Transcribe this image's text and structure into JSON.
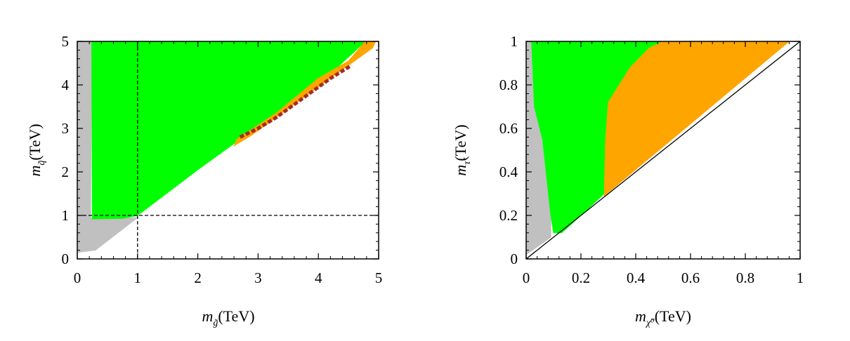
{
  "chart_data": [
    {
      "type": "scatter",
      "title": "",
      "xlabel": {
        "symbol": "m",
        "subscript": "g̃",
        "unit": "(TeV)"
      },
      "ylabel": {
        "symbol": "m",
        "subscript": "q̃",
        "unit": "(TeV)"
      },
      "xlim": [
        0,
        5
      ],
      "ylim": [
        0,
        5
      ],
      "xticks": [
        0,
        1,
        2,
        3,
        4,
        5
      ],
      "yticks": [
        0,
        1,
        2,
        3,
        4,
        5
      ],
      "tick_labels_x": [
        "0",
        "1",
        "2",
        "3",
        "4",
        "5"
      ],
      "tick_labels_y": [
        "0",
        "1",
        "2",
        "3",
        "4",
        "5"
      ],
      "grid": false,
      "legend": "none",
      "regions": [
        {
          "name": "",
          "color": "#c0c0c0",
          "polygon": [
            [
              0.0,
              0.15
            ],
            [
              0.0,
              5.0
            ],
            [
              0.24,
              5.0
            ],
            [
              0.22,
              0.95
            ],
            [
              1.0,
              0.95
            ],
            [
              0.3,
              0.2
            ]
          ]
        },
        {
          "name": "",
          "color": "#00ff00",
          "polygon": [
            [
              0.24,
              5.0
            ],
            [
              4.78,
              5.0
            ],
            [
              4.35,
              4.45
            ],
            [
              3.2,
              3.25
            ],
            [
              2.0,
              2.05
            ],
            [
              1.0,
              1.0
            ],
            [
              0.75,
              0.93
            ],
            [
              0.25,
              0.92
            ]
          ]
        },
        {
          "name": "",
          "color": "#ffa500",
          "polygon": [
            [
              4.78,
              5.0
            ],
            [
              4.95,
              5.0
            ],
            [
              4.9,
              4.85
            ],
            [
              4.4,
              4.35
            ],
            [
              3.6,
              3.55
            ],
            [
              2.9,
              2.85
            ],
            [
              2.6,
              2.6
            ],
            [
              2.65,
              2.75
            ],
            [
              3.3,
              3.35
            ],
            [
              4.0,
              4.15
            ],
            [
              4.5,
              4.55
            ]
          ]
        },
        {
          "name": "",
          "color": "#a52a2a",
          "polyline": [
            [
              2.7,
              2.8
            ],
            [
              3.0,
              3.0
            ],
            [
              3.3,
              3.25
            ],
            [
              3.6,
              3.55
            ],
            [
              3.9,
              3.85
            ],
            [
              4.2,
              4.15
            ],
            [
              4.55,
              4.45
            ]
          ]
        }
      ],
      "reference_lines": [
        {
          "orientation": "vertical",
          "value": 1,
          "style": "dashed"
        },
        {
          "orientation": "horizontal",
          "value": 1,
          "style": "dashed"
        }
      ]
    },
    {
      "type": "scatter",
      "title": "",
      "xlabel": {
        "symbol": "m",
        "subscript": "χ̃⁰",
        "unit": "(TeV)"
      },
      "ylabel": {
        "symbol": "m",
        "subscript": "τ̃",
        "unit": "(TeV)"
      },
      "xlim": [
        0,
        1
      ],
      "ylim": [
        0,
        1
      ],
      "xticks": [
        0,
        0.2,
        0.4,
        0.6,
        0.8,
        1
      ],
      "yticks": [
        0,
        0.2,
        0.4,
        0.6,
        0.8,
        1
      ],
      "tick_labels_x": [
        "0",
        "0.2",
        "0.4",
        "0.6",
        "0.8",
        "1"
      ],
      "tick_labels_y": [
        "0",
        "0.2",
        "0.4",
        "0.6",
        "0.8",
        "1"
      ],
      "grid": false,
      "legend": "none",
      "regions": [
        {
          "name": "",
          "color": "#c0c0c0",
          "polygon": [
            [
              0.0,
              0.02
            ],
            [
              0.0,
              1.0
            ],
            [
              0.02,
              1.0
            ],
            [
              0.03,
              0.7
            ],
            [
              0.06,
              0.55
            ],
            [
              0.09,
              0.2
            ],
            [
              0.09,
              0.1
            ]
          ]
        },
        {
          "name": "",
          "color": "#00ff00",
          "polygon": [
            [
              0.02,
              1.0
            ],
            [
              0.5,
              1.0
            ],
            [
              0.45,
              0.97
            ],
            [
              0.38,
              0.88
            ],
            [
              0.34,
              0.8
            ],
            [
              0.3,
              0.72
            ],
            [
              0.29,
              0.55
            ],
            [
              0.285,
              0.3
            ],
            [
              0.2,
              0.2
            ],
            [
              0.13,
              0.12
            ],
            [
              0.1,
              0.12
            ],
            [
              0.09,
              0.2
            ],
            [
              0.06,
              0.55
            ],
            [
              0.03,
              0.7
            ]
          ]
        },
        {
          "name": "",
          "color": "#ffa500",
          "polygon": [
            [
              0.5,
              1.0
            ],
            [
              0.96,
              1.0
            ],
            [
              0.285,
              0.29
            ],
            [
              0.29,
              0.55
            ],
            [
              0.3,
              0.72
            ],
            [
              0.34,
              0.8
            ],
            [
              0.38,
              0.88
            ],
            [
              0.45,
              0.97
            ]
          ]
        }
      ],
      "reference_lines": [
        {
          "orientation": "diagonal",
          "from": [
            0,
            0
          ],
          "to": [
            1,
            1
          ],
          "style": "solid"
        }
      ]
    }
  ]
}
